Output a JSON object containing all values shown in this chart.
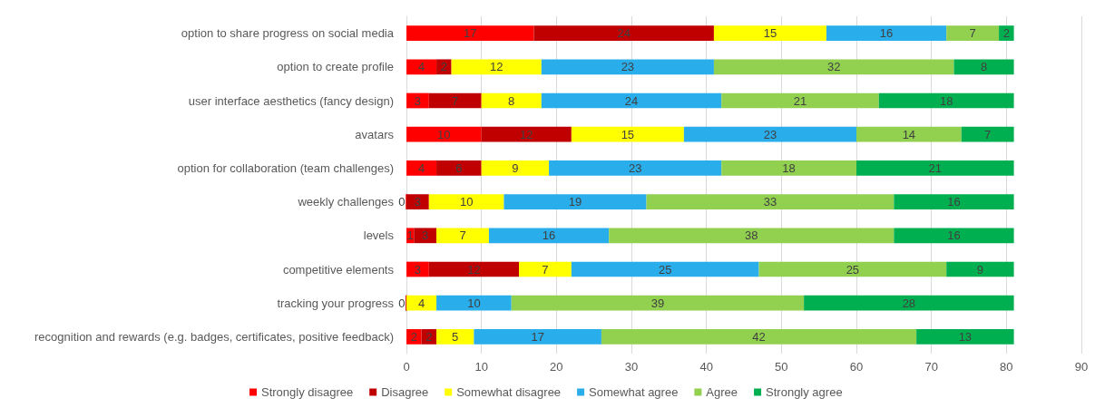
{
  "chart_data": {
    "type": "bar",
    "orientation": "horizontal",
    "stacked": true,
    "categories": [
      "option to share progress on social media",
      "option to create profile",
      "user interface aesthetics (fancy design)",
      "avatars",
      "option for collaboration (team challenges)",
      "weekly challenges",
      "levels",
      "competitive elements",
      "tracking your progress",
      "recognition and rewards (e.g. badges, certificates, positive feedback)"
    ],
    "series": [
      {
        "name": "Strongly disagree",
        "color": "#ff0000",
        "values": [
          17,
          4,
          3,
          10,
          4,
          0,
          1,
          3,
          0,
          2
        ],
        "value_labels": [
          "17",
          "4",
          "3",
          "10",
          "4",
          "0",
          "1",
          "3",
          "0",
          "2"
        ]
      },
      {
        "name": "Disagree",
        "color": "#c00000",
        "values": [
          24,
          2,
          7,
          12,
          6,
          3,
          3,
          12,
          0,
          2
        ],
        "value_labels": [
          "24",
          "2",
          "7",
          "12",
          "6",
          "3",
          "3",
          "12",
          null,
          "2"
        ]
      },
      {
        "name": "Somewhat disagree",
        "color": "#ffff00",
        "values": [
          15,
          12,
          8,
          15,
          9,
          10,
          7,
          7,
          4,
          5
        ],
        "value_labels": [
          "15",
          "12",
          "8",
          "15",
          "9",
          "10",
          "7",
          "7",
          "4",
          "5"
        ]
      },
      {
        "name": "Somewhat agree",
        "color": "#29adeb",
        "values": [
          16,
          23,
          24,
          23,
          23,
          19,
          16,
          25,
          10,
          17
        ],
        "value_labels": [
          "16",
          "23",
          "24",
          "23",
          "23",
          "19",
          "16",
          "25",
          "10",
          "17"
        ]
      },
      {
        "name": "Agree",
        "color": "#92d050",
        "values": [
          7,
          32,
          21,
          14,
          18,
          33,
          38,
          25,
          39,
          42
        ],
        "value_labels": [
          "7",
          "32",
          "21",
          "14",
          "18",
          "33",
          "38",
          "25",
          "39",
          "42"
        ]
      },
      {
        "name": "Strongly agree",
        "color": "#00b050",
        "values": [
          2,
          8,
          18,
          7,
          21,
          16,
          16,
          9,
          28,
          13
        ],
        "value_labels": [
          "2",
          "8",
          "18",
          "7",
          "21",
          "16",
          "16",
          "9",
          "28",
          "13"
        ]
      }
    ],
    "xlim": [
      0,
      90
    ],
    "xticks": [
      0,
      10,
      20,
      30,
      40,
      50,
      60,
      70,
      80,
      90
    ],
    "grid": "x",
    "legend": "bottom"
  }
}
